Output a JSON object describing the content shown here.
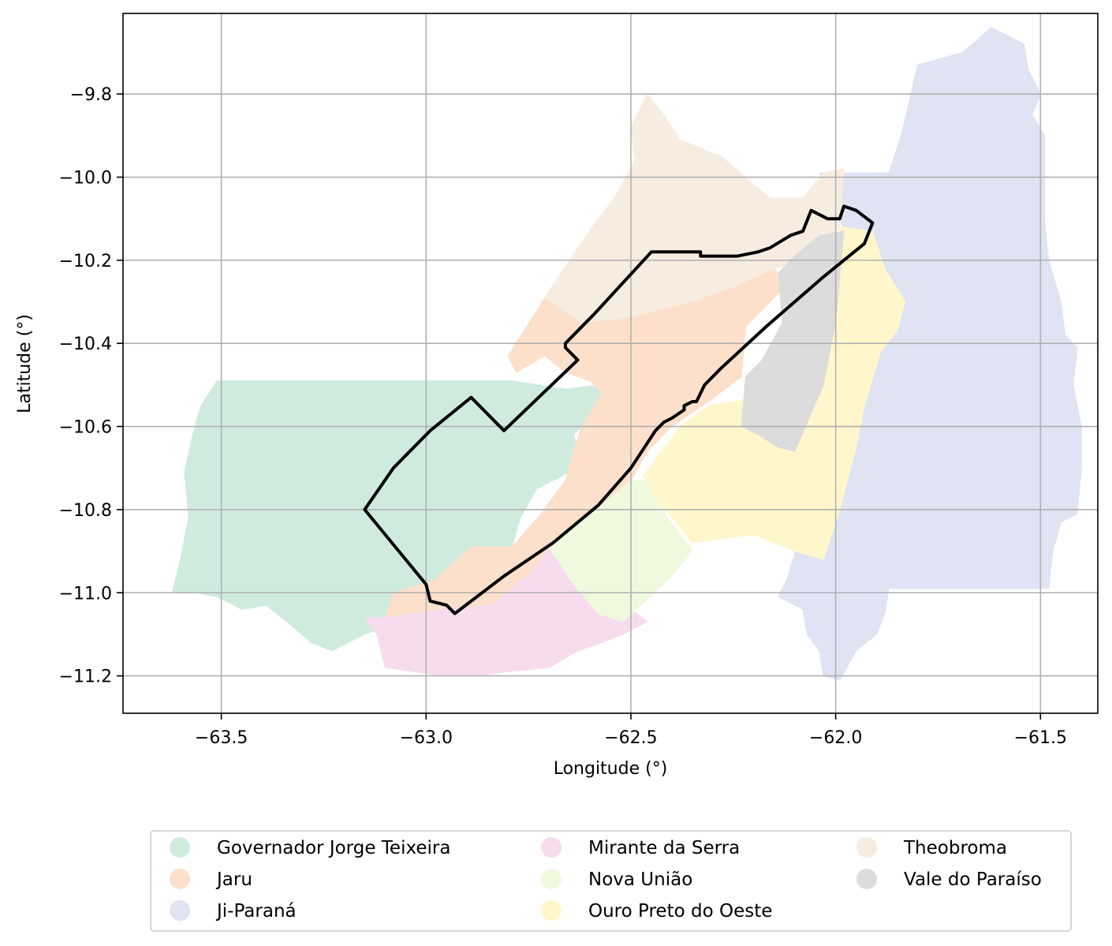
{
  "chart_data": {
    "type": "map",
    "xlabel": "Longitude (°)",
    "ylabel": "Latitude (°)",
    "xlim": [
      -63.74,
      -61.36
    ],
    "ylim": [
      -11.29,
      -9.606
    ],
    "xticks": [
      -63.5,
      -63.0,
      -62.5,
      -62.0,
      -61.5
    ],
    "xtick_labels": [
      "−63.5",
      "−63.0",
      "−62.5",
      "−62.0",
      "−61.5"
    ],
    "yticks": [
      -9.8,
      -10.0,
      -10.2,
      -10.4,
      -10.6,
      -10.8,
      -11.0,
      -11.2
    ],
    "ytick_labels": [
      "−9.8",
      "−10.0",
      "−10.2",
      "−10.4",
      "−10.6",
      "−10.8",
      "−11.0",
      "−11.2"
    ],
    "grid": true,
    "legend_placement": "bottom",
    "legend": [
      {
        "name": "Governador Jorge Teixeira",
        "color": "#cfebde"
      },
      {
        "name": "Jaru",
        "color": "#fce0cb"
      },
      {
        "name": "Ji-Paraná",
        "color": "#dfe3f2"
      },
      {
        "name": "Mirante da Serra",
        "color": "#f6dcee"
      },
      {
        "name": "Nova União",
        "color": "#eff9de"
      },
      {
        "name": "Ouro Preto do Oeste",
        "color": "#fff7cb"
      },
      {
        "name": "Theobroma",
        "color": "#f6ece0"
      },
      {
        "name": "Vale do Paraíso",
        "color": "#dcdcdc"
      }
    ],
    "regions": [
      {
        "name": "Governador Jorge Teixeira",
        "color": "#cfebde",
        "coords": [
          [
            -63.51,
            -10.49
          ],
          [
            -62.79,
            -10.49
          ],
          [
            -62.66,
            -10.51
          ],
          [
            -62.58,
            -10.5
          ],
          [
            -62.56,
            -10.53
          ],
          [
            -62.6,
            -10.58
          ],
          [
            -62.64,
            -10.62
          ],
          [
            -62.62,
            -10.69
          ],
          [
            -62.67,
            -10.72
          ],
          [
            -62.73,
            -10.75
          ],
          [
            -62.77,
            -10.82
          ],
          [
            -62.79,
            -10.89
          ],
          [
            -62.86,
            -10.9
          ],
          [
            -62.93,
            -10.99
          ],
          [
            -62.99,
            -11.03
          ],
          [
            -63.06,
            -11.07
          ],
          [
            -63.15,
            -11.1
          ],
          [
            -63.23,
            -11.14
          ],
          [
            -63.28,
            -11.12
          ],
          [
            -63.34,
            -11.07
          ],
          [
            -63.39,
            -11.03
          ],
          [
            -63.45,
            -11.04
          ],
          [
            -63.51,
            -11.01
          ],
          [
            -63.56,
            -11.0
          ],
          [
            -63.62,
            -11.0
          ],
          [
            -63.6,
            -10.92
          ],
          [
            -63.58,
            -10.82
          ],
          [
            -63.59,
            -10.71
          ],
          [
            -63.57,
            -10.62
          ],
          [
            -63.55,
            -10.55
          ],
          [
            -63.51,
            -10.49
          ]
        ]
      },
      {
        "name": "Jaru",
        "color": "#fce0cb",
        "coords": [
          [
            -62.71,
            -10.29
          ],
          [
            -62.62,
            -10.35
          ],
          [
            -62.52,
            -10.34
          ],
          [
            -62.35,
            -10.3
          ],
          [
            -62.24,
            -10.26
          ],
          [
            -62.15,
            -10.22
          ],
          [
            -62.12,
            -10.26
          ],
          [
            -62.22,
            -10.36
          ],
          [
            -62.23,
            -10.48
          ],
          [
            -62.31,
            -10.54
          ],
          [
            -62.4,
            -10.6
          ],
          [
            -62.46,
            -10.66
          ],
          [
            -62.5,
            -10.73
          ],
          [
            -62.56,
            -10.81
          ],
          [
            -62.66,
            -10.89
          ],
          [
            -62.73,
            -10.95
          ],
          [
            -62.84,
            -11.03
          ],
          [
            -62.96,
            -11.04
          ],
          [
            -63.1,
            -11.06
          ],
          [
            -63.08,
            -11.0
          ],
          [
            -62.98,
            -10.97
          ],
          [
            -62.89,
            -10.89
          ],
          [
            -62.79,
            -10.89
          ],
          [
            -62.72,
            -10.81
          ],
          [
            -62.66,
            -10.73
          ],
          [
            -62.64,
            -10.66
          ],
          [
            -62.62,
            -10.6
          ],
          [
            -62.57,
            -10.52
          ],
          [
            -62.6,
            -10.49
          ],
          [
            -62.66,
            -10.47
          ],
          [
            -62.71,
            -10.43
          ],
          [
            -62.78,
            -10.47
          ],
          [
            -62.8,
            -10.43
          ],
          [
            -62.71,
            -10.29
          ]
        ]
      },
      {
        "name": "Ji-Paraná",
        "color": "#dfe3f2",
        "coords": [
          [
            -61.8,
            -9.73
          ],
          [
            -61.69,
            -9.7
          ],
          [
            -61.62,
            -9.64
          ],
          [
            -61.54,
            -9.68
          ],
          [
            -61.53,
            -9.74
          ],
          [
            -61.5,
            -9.8
          ],
          [
            -61.52,
            -9.85
          ],
          [
            -61.49,
            -9.9
          ],
          [
            -61.49,
            -10.1
          ],
          [
            -61.48,
            -10.2
          ],
          [
            -61.45,
            -10.3
          ],
          [
            -61.44,
            -10.38
          ],
          [
            -61.41,
            -10.41
          ],
          [
            -61.42,
            -10.5
          ],
          [
            -61.4,
            -10.6
          ],
          [
            -61.4,
            -10.7
          ],
          [
            -61.41,
            -10.81
          ],
          [
            -61.45,
            -10.83
          ],
          [
            -61.47,
            -10.9
          ],
          [
            -61.48,
            -10.99
          ],
          [
            -61.7,
            -10.99
          ],
          [
            -61.87,
            -10.99
          ],
          [
            -61.88,
            -11.05
          ],
          [
            -61.9,
            -11.1
          ],
          [
            -61.95,
            -11.14
          ],
          [
            -61.99,
            -11.21
          ],
          [
            -62.03,
            -11.2
          ],
          [
            -62.04,
            -11.14
          ],
          [
            -62.07,
            -11.1
          ],
          [
            -62.08,
            -11.04
          ],
          [
            -62.14,
            -11.01
          ],
          [
            -62.12,
            -10.97
          ],
          [
            -62.05,
            -10.75
          ],
          [
            -61.97,
            -10.48
          ],
          [
            -61.92,
            -10.3
          ],
          [
            -61.99,
            -10.1
          ],
          [
            -62.04,
            -9.99
          ],
          [
            -61.97,
            -9.99
          ],
          [
            -61.87,
            -9.99
          ],
          [
            -61.84,
            -9.9
          ],
          [
            -61.8,
            -9.73
          ]
        ]
      },
      {
        "name": "Mirante da Serra",
        "color": "#f6dcee",
        "coords": [
          [
            -62.7,
            -10.89
          ],
          [
            -62.58,
            -10.98
          ],
          [
            -62.46,
            -11.07
          ],
          [
            -62.52,
            -11.1
          ],
          [
            -62.57,
            -11.12
          ],
          [
            -62.63,
            -11.14
          ],
          [
            -62.7,
            -11.18
          ],
          [
            -62.8,
            -11.19
          ],
          [
            -62.88,
            -11.2
          ],
          [
            -62.96,
            -11.2
          ],
          [
            -63.1,
            -11.18
          ],
          [
            -63.12,
            -11.1
          ],
          [
            -63.15,
            -11.06
          ],
          [
            -63.1,
            -11.06
          ],
          [
            -62.96,
            -11.04
          ],
          [
            -62.84,
            -11.03
          ],
          [
            -62.74,
            -10.95
          ],
          [
            -62.7,
            -10.89
          ]
        ]
      },
      {
        "name": "Nova União",
        "color": "#eff9de",
        "coords": [
          [
            -62.5,
            -10.73
          ],
          [
            -62.46,
            -10.73
          ],
          [
            -62.41,
            -10.82
          ],
          [
            -62.35,
            -10.9
          ],
          [
            -62.41,
            -10.97
          ],
          [
            -62.52,
            -11.07
          ],
          [
            -62.58,
            -11.05
          ],
          [
            -62.64,
            -10.98
          ],
          [
            -62.7,
            -10.89
          ],
          [
            -62.62,
            -10.82
          ],
          [
            -62.56,
            -10.78
          ],
          [
            -62.5,
            -10.73
          ]
        ]
      },
      {
        "name": "Ouro Preto do Oeste",
        "color": "#fff7cb",
        "coords": [
          [
            -61.99,
            -10.12
          ],
          [
            -62.03,
            -10.25
          ],
          [
            -62.09,
            -10.4
          ],
          [
            -62.19,
            -10.53
          ],
          [
            -62.31,
            -10.55
          ],
          [
            -62.38,
            -10.6
          ],
          [
            -62.47,
            -10.72
          ],
          [
            -62.44,
            -10.77
          ],
          [
            -62.35,
            -10.88
          ],
          [
            -62.2,
            -10.86
          ],
          [
            -62.1,
            -10.9
          ],
          [
            -62.03,
            -10.92
          ],
          [
            -61.99,
            -10.8
          ],
          [
            -61.95,
            -10.65
          ],
          [
            -61.93,
            -10.55
          ],
          [
            -61.89,
            -10.42
          ],
          [
            -61.85,
            -10.37
          ],
          [
            -61.83,
            -10.3
          ],
          [
            -61.88,
            -10.22
          ],
          [
            -61.91,
            -10.13
          ],
          [
            -61.99,
            -10.12
          ]
        ]
      },
      {
        "name": "Theobroma",
        "color": "#f6ece0",
        "coords": [
          [
            -62.46,
            -9.8
          ],
          [
            -62.42,
            -9.85
          ],
          [
            -62.38,
            -9.91
          ],
          [
            -62.28,
            -9.95
          ],
          [
            -62.21,
            -10.01
          ],
          [
            -62.16,
            -10.05
          ],
          [
            -62.08,
            -10.05
          ],
          [
            -62.03,
            -9.99
          ],
          [
            -61.98,
            -9.98
          ],
          [
            -61.99,
            -10.12
          ],
          [
            -62.07,
            -10.2
          ],
          [
            -62.15,
            -10.22
          ],
          [
            -62.24,
            -10.26
          ],
          [
            -62.35,
            -10.3
          ],
          [
            -62.52,
            -10.34
          ],
          [
            -62.62,
            -10.35
          ],
          [
            -62.71,
            -10.29
          ],
          [
            -62.65,
            -10.2
          ],
          [
            -62.58,
            -10.1
          ],
          [
            -62.54,
            -10.05
          ],
          [
            -62.49,
            -9.96
          ],
          [
            -62.5,
            -9.88
          ],
          [
            -62.46,
            -9.8
          ]
        ]
      },
      {
        "name": "Vale do Paraíso",
        "color": "#dcdcdc",
        "coords": [
          [
            -61.98,
            -10.13
          ],
          [
            -62.04,
            -10.14
          ],
          [
            -62.1,
            -10.19
          ],
          [
            -62.14,
            -10.23
          ],
          [
            -62.13,
            -10.35
          ],
          [
            -62.18,
            -10.44
          ],
          [
            -62.22,
            -10.48
          ],
          [
            -62.23,
            -10.6
          ],
          [
            -62.19,
            -10.62
          ],
          [
            -62.14,
            -10.65
          ],
          [
            -62.1,
            -10.66
          ],
          [
            -62.03,
            -10.5
          ],
          [
            -62.0,
            -10.35
          ],
          [
            -61.98,
            -10.13
          ]
        ]
      }
    ],
    "boundary": [
      [
        -63.15,
        -10.8
      ],
      [
        -63.08,
        -10.7
      ],
      [
        -62.99,
        -10.61
      ],
      [
        -62.89,
        -10.53
      ],
      [
        -62.81,
        -10.61
      ],
      [
        -62.63,
        -10.44
      ],
      [
        -62.66,
        -10.41
      ],
      [
        -62.66,
        -10.4
      ],
      [
        -62.59,
        -10.33
      ],
      [
        -62.45,
        -10.18
      ],
      [
        -62.33,
        -10.18
      ],
      [
        -62.33,
        -10.19
      ],
      [
        -62.29,
        -10.19
      ],
      [
        -62.24,
        -10.19
      ],
      [
        -62.19,
        -10.18
      ],
      [
        -62.16,
        -10.17
      ],
      [
        -62.11,
        -10.14
      ],
      [
        -62.08,
        -10.13
      ],
      [
        -62.06,
        -10.08
      ],
      [
        -62.02,
        -10.1
      ],
      [
        -61.99,
        -10.1
      ],
      [
        -61.98,
        -10.07
      ],
      [
        -61.95,
        -10.08
      ],
      [
        -61.91,
        -10.11
      ],
      [
        -61.93,
        -10.16
      ],
      [
        -62.03,
        -10.24
      ],
      [
        -62.17,
        -10.36
      ],
      [
        -62.28,
        -10.46
      ],
      [
        -62.32,
        -10.5
      ],
      [
        -62.34,
        -10.54
      ],
      [
        -62.35,
        -10.54
      ],
      [
        -62.37,
        -10.55
      ],
      [
        -62.37,
        -10.56
      ],
      [
        -62.4,
        -10.58
      ],
      [
        -62.42,
        -10.59
      ],
      [
        -62.43,
        -10.6
      ],
      [
        -62.44,
        -10.61
      ],
      [
        -62.5,
        -10.7
      ],
      [
        -62.58,
        -10.79
      ],
      [
        -62.69,
        -10.88
      ],
      [
        -62.81,
        -10.96
      ],
      [
        -62.93,
        -11.05
      ],
      [
        -62.94,
        -11.04
      ],
      [
        -62.95,
        -11.03
      ],
      [
        -62.99,
        -11.02
      ],
      [
        -63.0,
        -10.98
      ],
      [
        -63.15,
        -10.8
      ]
    ]
  }
}
